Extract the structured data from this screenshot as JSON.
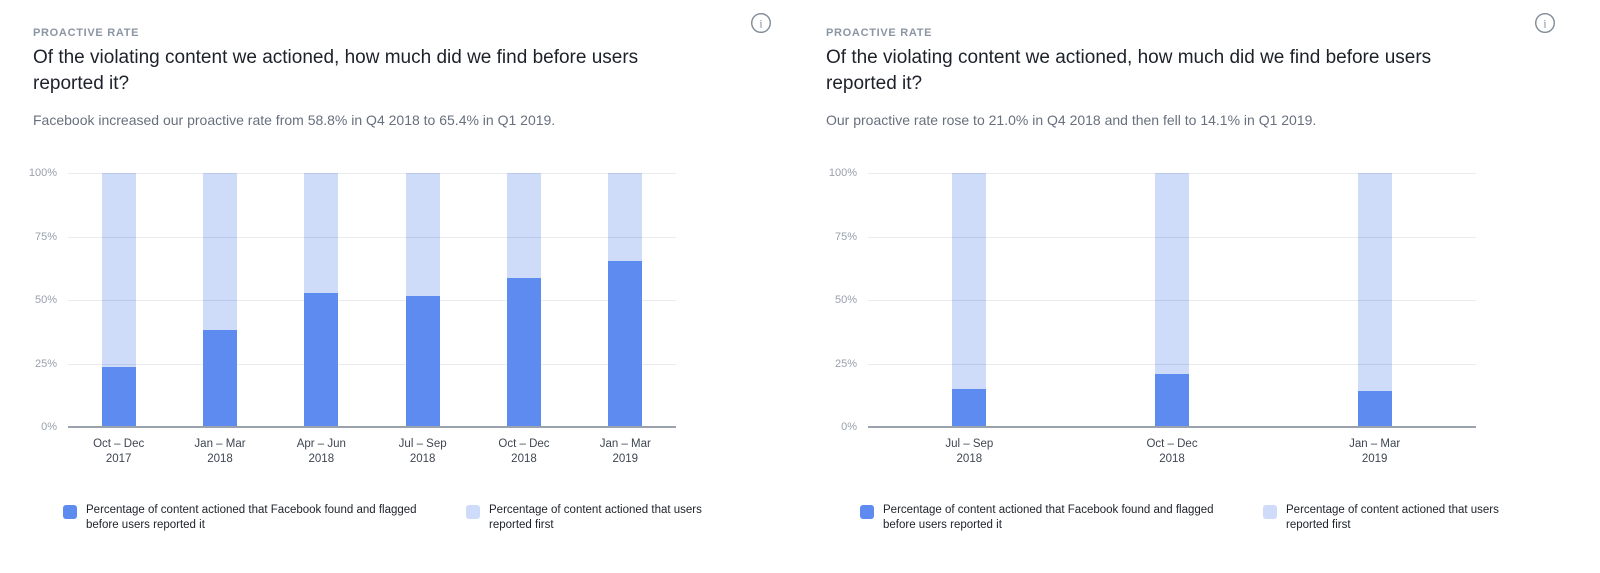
{
  "page": {
    "background": "#ffffff"
  },
  "icons": {
    "info": "circled-i"
  },
  "colors": {
    "proactive_bar": "#5e8bf0",
    "user_reported_bar": "#cedcfa",
    "gridline": "#e9ebee",
    "axis_line": "#9aa2ad",
    "title_text": "#1d2129",
    "subtitle_text": "#68707e",
    "eyebrow_text": "#8b95a3"
  },
  "chart_data": [
    {
      "type": "bar",
      "stacked": true,
      "eyebrow": "PROACTIVE RATE",
      "title": "Of the violating content we actioned, how much did we find before users reported it?",
      "subtitle": "Facebook increased our proactive rate from 58.8% in Q4 2018 to 65.4% in Q1 2019.",
      "categories": [
        [
          "Oct – Dec",
          "2017"
        ],
        [
          "Jan – Mar",
          "2018"
        ],
        [
          "Apr – Jun",
          "2018"
        ],
        [
          "Jul – Sep",
          "2018"
        ],
        [
          "Oct – Dec",
          "2018"
        ],
        [
          "Jan – Mar",
          "2019"
        ]
      ],
      "series": [
        {
          "name": "Percentage of content actioned that Facebook found and flagged before users reported it",
          "color": "#5e8bf0",
          "values": [
            23.6,
            38.0,
            52.8,
            51.6,
            58.8,
            65.4
          ]
        },
        {
          "name": "Percentage of content actioned that users reported first",
          "color": "#cedcfa",
          "values": [
            76.4,
            62.0,
            47.2,
            48.4,
            41.2,
            34.6
          ]
        }
      ],
      "xlabel": "",
      "ylabel": "",
      "ylim": [
        0,
        100
      ],
      "yticks": [
        "0%",
        "25%",
        "50%",
        "75%",
        "100%"
      ],
      "grid": true,
      "legend_position": "bottom"
    },
    {
      "type": "bar",
      "stacked": true,
      "eyebrow": "PROACTIVE RATE",
      "title": "Of the violating content we actioned, how much did we find before users reported it?",
      "subtitle": "Our proactive rate rose to 21.0% in Q4 2018 and then fell to 14.1% in Q1 2019.",
      "categories": [
        [
          "Jul – Sep",
          "2018"
        ],
        [
          "Oct – Dec",
          "2018"
        ],
        [
          "Jan – Mar",
          "2019"
        ]
      ],
      "series": [
        {
          "name": "Percentage of content actioned that Facebook found and flagged before users reported it",
          "color": "#5e8bf0",
          "values": [
            14.9,
            21.0,
            14.1
          ]
        },
        {
          "name": "Percentage of content actioned that users reported first",
          "color": "#cedcfa",
          "values": [
            85.1,
            79.0,
            85.9
          ]
        }
      ],
      "xlabel": "",
      "ylabel": "",
      "ylim": [
        0,
        100
      ],
      "yticks": [
        "0%",
        "25%",
        "50%",
        "75%",
        "100%"
      ],
      "grid": true,
      "legend_position": "bottom"
    }
  ]
}
